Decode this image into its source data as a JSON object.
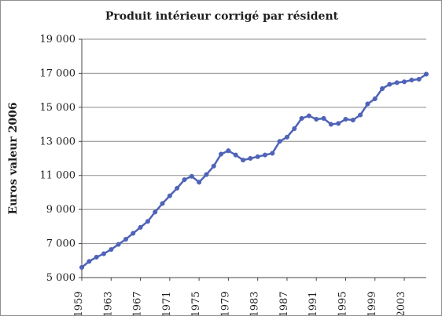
{
  "chart_data": {
    "type": "line",
    "title": "Produit intérieur corrigé par résident",
    "xlabel": "",
    "ylabel": "Euros valeur 2006",
    "xlim": [
      1959,
      2006
    ],
    "ylim": [
      5000,
      19000
    ],
    "x_ticks": [
      1959,
      1963,
      1967,
      1971,
      1975,
      1979,
      1983,
      1987,
      1991,
      1995,
      1999,
      2003
    ],
    "y_ticks": [
      5000,
      7000,
      9000,
      11000,
      13000,
      15000,
      17000,
      19000
    ],
    "y_tick_labels": [
      "5 000",
      "7 000",
      "9 000",
      "11 000",
      "13 000",
      "15 000",
      "17 000",
      "19 000"
    ],
    "grid": {
      "horizontal": true,
      "vertical": false
    },
    "legend": "none",
    "colors": {
      "line": "#4f63b7",
      "marker": "#4f63b7",
      "grid": "#8a8a8a",
      "axis": "#444444",
      "text": "#1f1f1f"
    },
    "series": [
      {
        "x": [
          1959,
          1960,
          1961,
          1962,
          1963,
          1964,
          1965,
          1966,
          1967,
          1968,
          1969,
          1970,
          1971,
          1972,
          1973,
          1974,
          1975,
          1976,
          1977,
          1978,
          1979,
          1980,
          1981,
          1982,
          1983,
          1984,
          1985,
          1986,
          1987,
          1988,
          1989,
          1990,
          1991,
          1992,
          1993,
          1994,
          1995,
          1996,
          1997,
          1998,
          1999,
          2000,
          2001,
          2002,
          2003,
          2004,
          2005,
          2006
        ],
        "values": [
          5600,
          5950,
          6200,
          6400,
          6650,
          6950,
          7250,
          7600,
          7950,
          8300,
          8850,
          9350,
          9800,
          10250,
          10750,
          10950,
          10600,
          11050,
          11550,
          12250,
          12450,
          12200,
          11900,
          12000,
          12100,
          12200,
          12300,
          13000,
          13250,
          13750,
          14350,
          14500,
          14300,
          14350,
          14000,
          14050,
          14300,
          14250,
          14550,
          15200,
          15500,
          16100,
          16350,
          16450,
          16500,
          16600,
          16650,
          16950
        ]
      }
    ]
  }
}
